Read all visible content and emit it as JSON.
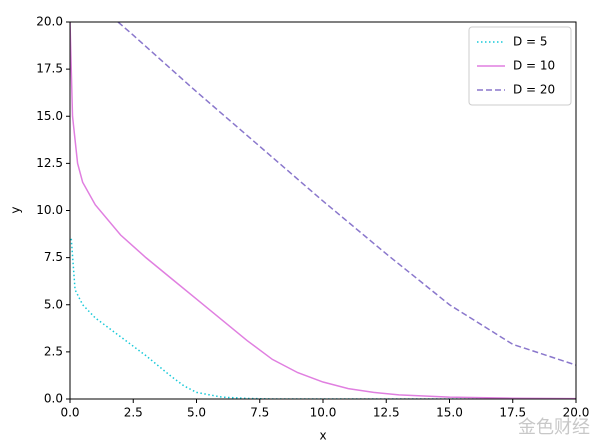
{
  "chart_data": {
    "type": "line",
    "x_label": "x",
    "y_label": "y",
    "xlim": [
      0,
      20
    ],
    "ylim": [
      0,
      20
    ],
    "xticks": [
      {
        "value": 0,
        "label": "0.0"
      },
      2.5,
      {
        "value": 5,
        "label": "5.0"
      },
      7.5,
      {
        "value": 10,
        "label": "10.0"
      },
      12.5,
      {
        "value": 15,
        "label": "15.0"
      },
      17.5,
      {
        "value": 20,
        "label": "20.0"
      }
    ],
    "yticks": [
      {
        "value": 0,
        "label": "0.0"
      },
      2.5,
      {
        "value": 5,
        "label": "5.0"
      },
      7.5,
      {
        "value": 10,
        "label": "10.0"
      },
      12.5,
      {
        "value": 15,
        "label": "15.0"
      },
      17.5,
      {
        "value": 20,
        "label": "20.0"
      }
    ],
    "legend": "upper right",
    "series": [
      {
        "name": "D = 5",
        "color": "#17c9d8",
        "dash": "dotted",
        "x": [
          0.05,
          0.2,
          0.5,
          1,
          2,
          3,
          4,
          4.5,
          5,
          6,
          7,
          8,
          20
        ],
        "values": [
          8.5,
          5.8,
          5.0,
          4.3,
          3.3,
          2.3,
          1.2,
          0.7,
          0.35,
          0.1,
          0.03,
          0,
          0
        ]
      },
      {
        "name": "D = 10",
        "color": "#e07fe0",
        "dash": "solid",
        "x": [
          0,
          0.1,
          0.3,
          0.5,
          1,
          2,
          3,
          4,
          5,
          6,
          7,
          8,
          9,
          10,
          11,
          12,
          13,
          15,
          17.5,
          20
        ],
        "values": [
          20,
          15,
          12.5,
          11.5,
          10.3,
          8.7,
          7.5,
          6.4,
          5.3,
          4.2,
          3.1,
          2.1,
          1.4,
          0.9,
          0.55,
          0.35,
          0.22,
          0.1,
          0.04,
          0.02
        ]
      },
      {
        "name": "D = 20",
        "color": "#8a77cc",
        "dash": "dashed",
        "x": [
          1.9,
          2.5,
          5,
          7.5,
          10,
          12.5,
          15,
          17.5,
          20
        ],
        "values": [
          20,
          19.3,
          16.3,
          13.4,
          10.5,
          7.7,
          5.0,
          2.9,
          1.8
        ]
      }
    ],
    "watermark": "金色财经"
  }
}
